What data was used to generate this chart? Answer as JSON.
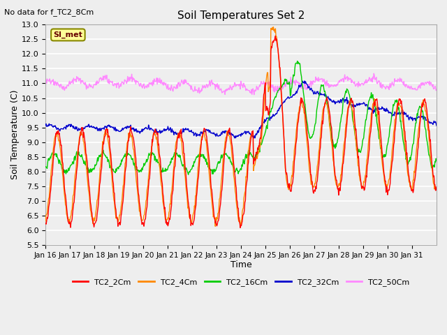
{
  "title": "Soil Temperatures Set 2",
  "subtitle": "No data for f_TC2_8Cm",
  "xlabel": "Time",
  "ylabel": "Soil Temperature (C)",
  "ylim": [
    5.5,
    13.0
  ],
  "yticks": [
    5.5,
    6.0,
    6.5,
    7.0,
    7.5,
    8.0,
    8.5,
    9.0,
    9.5,
    10.0,
    10.5,
    11.0,
    11.5,
    12.0,
    12.5,
    13.0
  ],
  "x_labels": [
    "Jan 16",
    "Jan 17",
    "Jan 18",
    "Jan 19",
    "Jan 20",
    "Jan 21",
    "Jan 22",
    "Jan 23",
    "Jan 24",
    "Jan 25",
    "Jan 26",
    "Jan 27",
    "Jan 28",
    "Jan 29",
    "Jan 30",
    "Jan 31"
  ],
  "colors": {
    "TC2_2Cm": "#ff0000",
    "TC2_4Cm": "#ff8800",
    "TC2_16Cm": "#00cc00",
    "TC2_32Cm": "#0000cc",
    "TC2_50Cm": "#ff88ff"
  },
  "legend_label": "SI_met",
  "legend_box_color": "#ffff99",
  "legend_box_border": "#888800",
  "plot_bg_color": "#eeeeee",
  "grid_color": "#ffffff",
  "n_days": 16,
  "points_per_day": 48
}
